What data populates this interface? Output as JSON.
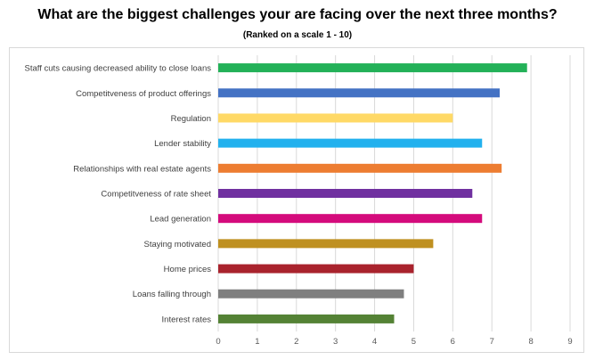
{
  "chart_data": {
    "type": "bar",
    "orientation": "horizontal",
    "title": "What are the biggest challenges your are facing over the next three months?",
    "subtitle": "(Ranked on a scale 1 - 10)",
    "xlabel": "",
    "ylabel": "",
    "xlim": [
      0,
      9
    ],
    "ticks": [
      "0",
      "1",
      "2",
      "3",
      "4",
      "5",
      "6",
      "7",
      "8",
      "9"
    ],
    "grid": true,
    "categories": [
      "Staff cuts causing decreased ability to close loans",
      "Competitveness of product offerings",
      "Regulation",
      "Lender stability",
      "Relationships with real estate agents",
      "Competitveness of rate sheet",
      "Lead generation",
      "Staying motivated",
      "Home prices",
      "Loans falling through",
      "Interest rates"
    ],
    "values": [
      7.9,
      7.2,
      6.0,
      6.75,
      7.25,
      6.5,
      6.75,
      5.5,
      5.0,
      4.75,
      4.5
    ],
    "colors": [
      "#23b158",
      "#4472c4",
      "#ffd966",
      "#22b1ee",
      "#ed7d31",
      "#7030a0",
      "#d40b7c",
      "#bf9020",
      "#a9232d",
      "#7f7f7f",
      "#548235"
    ]
  }
}
